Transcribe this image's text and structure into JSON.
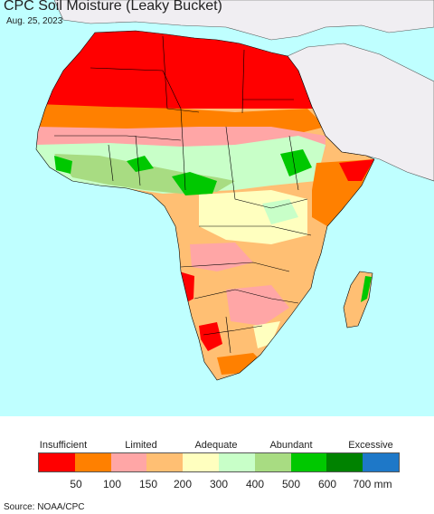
{
  "title": "CPC Soil Moisture (Leaky Bucket)",
  "date": "Aug. 25, 2023",
  "legend": {
    "categories": [
      "Insufficient",
      "Limited",
      "Adequate",
      "Abundant",
      "Excessive"
    ],
    "ticks": [
      "50",
      "100",
      "150",
      "200",
      "300",
      "400",
      "500",
      "600",
      "700 mm"
    ],
    "colors": [
      "#ff0000",
      "#ff8000",
      "#ffa6a6",
      "#ffbf73",
      "#ffffbf",
      "#c8ffc8",
      "#a8dc82",
      "#00c800",
      "#008200",
      "#1e78c8"
    ]
  },
  "map_colors": {
    "ocean": "#bfffff",
    "non_africa_land": "#f0eef2",
    "border": "#000000"
  },
  "source": "Source: NOAA/CPC"
}
